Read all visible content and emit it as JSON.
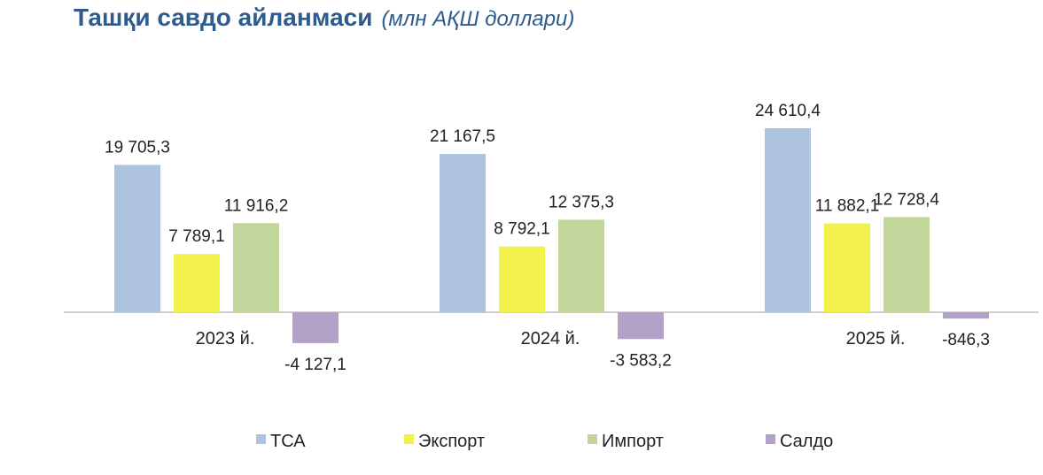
{
  "title": {
    "main": "Ташқи савдо айланмаси",
    "sub": "(млн АҚШ доллари)"
  },
  "colors": {
    "tsa": "#adc3e0",
    "export": "#f3f14c",
    "import": "#c2d69b",
    "saldo": "#b3a2c7",
    "baseline": "#bfbfbf"
  },
  "chart_data": {
    "type": "bar",
    "categories": [
      "2023 й.",
      "2024 й.",
      "2025 й."
    ],
    "series": [
      {
        "name": "ТСА",
        "values": [
          19705.3,
          21167.5,
          24610.4
        ],
        "labels": [
          "19 705,3",
          "21 167,5",
          "24 610,4"
        ],
        "color": "#adc3e0"
      },
      {
        "name": "Экспорт",
        "values": [
          7789.1,
          8792.1,
          11882.1
        ],
        "labels": [
          "7 789,1",
          "8 792,1",
          "11 882,1"
        ],
        "color": "#f3f14c"
      },
      {
        "name": "Импорт",
        "values": [
          11916.2,
          12375.3,
          12728.4
        ],
        "labels": [
          "11 916,2",
          "12 375,3",
          "12 728,4"
        ],
        "color": "#c2d69b"
      },
      {
        "name": "Салдо",
        "values": [
          -4127.1,
          -3583.2,
          -846.3
        ],
        "labels": [
          "-4 127,1",
          "-3 583,2",
          "-846,3"
        ],
        "color": "#b3a2c7"
      }
    ],
    "legend_position": "bottom",
    "grid": false
  }
}
